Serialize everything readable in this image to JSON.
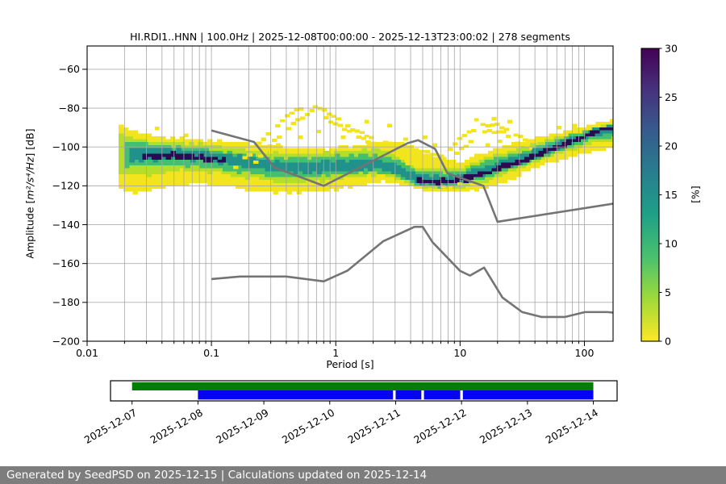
{
  "title": "HI.RDI1..HNN | 100.0Hz | 2025-12-08T00:00:00 - 2025-12-13T23:00:02 | 278 segments",
  "footer": {
    "text": "Generated by SeedPSD on 2025-12-15 | Calculations updated on 2025-12-14",
    "bg": "#7d7d7d",
    "fg": "#ffffff"
  },
  "chart_data": {
    "type": "heatmap",
    "title": "HI.RDI1..HNN | 100.0Hz | 2025-12-08T00:00:00 - 2025-12-13T23:00:02 | 278 segments",
    "xlabel": "Period [s]",
    "ylabel": {
      "prefix": "Amplitude [",
      "math": "m²/s⁴/Hz",
      "suffix": "] [dB]"
    },
    "xscale": "log",
    "xlim": [
      0.01,
      170
    ],
    "ylim": [
      -200,
      -48
    ],
    "xticks": [
      {
        "v": 0.01,
        "label": "0.01"
      },
      {
        "v": 0.1,
        "label": "0.1"
      },
      {
        "v": 1,
        "label": "1"
      },
      {
        "v": 10,
        "label": "10"
      },
      {
        "v": 100,
        "label": "100"
      }
    ],
    "yticks": [
      -200,
      -180,
      -160,
      -140,
      -120,
      -100,
      -80,
      -60
    ],
    "grid": {
      "color": "#a6a6a6",
      "opacity": 0.9
    },
    "colorbar": {
      "label": "[%]",
      "min": 0,
      "max": 30,
      "ticks": [
        0,
        5,
        10,
        15,
        20,
        25,
        30
      ],
      "gradient_top_to_bottom": [
        "#440154",
        "#46327e",
        "#365c8d",
        "#277f8e",
        "#1fa187",
        "#4ac16d",
        "#a0da39",
        "#fde725"
      ]
    },
    "noise_models": {
      "color": "#747474",
      "nhnm": [
        [
          0.1,
          -91.5
        ],
        [
          0.22,
          -97.4
        ],
        [
          0.32,
          -110.5
        ],
        [
          0.8,
          -120.0
        ],
        [
          3.8,
          -98.0
        ],
        [
          4.6,
          -96.5
        ],
        [
          6.3,
          -101.0
        ],
        [
          7.9,
          -113.5
        ],
        [
          15.4,
          -120.0
        ],
        [
          20.0,
          -138.5
        ],
        [
          170.0,
          -129.2
        ]
      ],
      "nlnm": [
        [
          0.1,
          -168.0
        ],
        [
          0.17,
          -166.7
        ],
        [
          0.4,
          -166.7
        ],
        [
          0.8,
          -169.2
        ],
        [
          1.24,
          -163.7
        ],
        [
          2.4,
          -148.6
        ],
        [
          4.3,
          -141.1
        ],
        [
          5.0,
          -141.1
        ],
        [
          6.0,
          -149.0
        ],
        [
          10.0,
          -163.8
        ],
        [
          12.0,
          -166.2
        ],
        [
          15.6,
          -162.1
        ],
        [
          21.9,
          -177.5
        ],
        [
          31.6,
          -185.0
        ],
        [
          45.0,
          -187.5
        ],
        [
          70.0,
          -187.5
        ],
        [
          101.0,
          -185.0
        ],
        [
          154.0,
          -185.0
        ],
        [
          170.0,
          -185.3
        ]
      ]
    },
    "cloud": {
      "bands": [
        {
          "name": "prob-1pct",
          "color": "#f2e51e",
          "pts": [
            [
              0.018,
              -121,
              -89
            ],
            [
              0.025,
              -124,
              -92
            ],
            [
              0.04,
              -121,
              -95
            ],
            [
              0.08,
              -118.5,
              -96
            ],
            [
              0.12,
              -120,
              -97
            ],
            [
              0.2,
              -122.5,
              -98
            ],
            [
              0.4,
              -124,
              -100
            ],
            [
              0.8,
              -123,
              -101
            ],
            [
              1.5,
              -120,
              -99
            ],
            [
              2.5,
              -117.5,
              -97
            ],
            [
              4,
              -120,
              -99
            ],
            [
              6,
              -123.5,
              -104
            ],
            [
              10,
              -122.5,
              -108
            ],
            [
              15,
              -122,
              -103
            ],
            [
              25,
              -117,
              -99
            ],
            [
              40,
              -111,
              -96
            ],
            [
              70,
              -106,
              -92
            ],
            [
              120,
              -102,
              -88
            ],
            [
              170,
              -101,
              -86
            ]
          ]
        },
        {
          "name": "prob-3pct",
          "color": "#b5de2b",
          "pts": [
            [
              0.018,
              -113,
              -93
            ],
            [
              0.03,
              -115,
              -97
            ],
            [
              0.06,
              -112,
              -98
            ],
            [
              0.1,
              -113,
              -99
            ],
            [
              0.2,
              -116,
              -101.5
            ],
            [
              0.4,
              -118.5,
              -103.5
            ],
            [
              0.8,
              -117.5,
              -103
            ],
            [
              1.5,
              -115.5,
              -101.5
            ],
            [
              2.5,
              -114,
              -101
            ],
            [
              4,
              -119,
              -110
            ],
            [
              6,
              -121.5,
              -111
            ],
            [
              10,
              -121.5,
              -111.5
            ],
            [
              15,
              -118,
              -106.5
            ],
            [
              25,
              -113.5,
              -102
            ],
            [
              40,
              -108.5,
              -98
            ],
            [
              70,
              -102.5,
              -94
            ],
            [
              120,
              -98,
              -90
            ],
            [
              170,
              -97.5,
              -87.5
            ]
          ]
        },
        {
          "name": "prob-7pct",
          "color": "#44bf70",
          "pts": [
            [
              0.02,
              -110,
              -97
            ],
            [
              0.04,
              -109.5,
              -99
            ],
            [
              0.08,
              -110,
              -100.5
            ],
            [
              0.15,
              -112.5,
              -103
            ],
            [
              0.3,
              -115,
              -105.5
            ],
            [
              0.6,
              -115.5,
              -105.5
            ],
            [
              1,
              -114.5,
              -104.5
            ],
            [
              2,
              -113,
              -104
            ],
            [
              3,
              -114.5,
              -106
            ],
            [
              4.5,
              -120,
              -112.5
            ],
            [
              7,
              -120.5,
              -113
            ],
            [
              10,
              -120,
              -113
            ],
            [
              15,
              -116.5,
              -108
            ],
            [
              25,
              -112,
              -104.5
            ],
            [
              40,
              -107,
              -100
            ],
            [
              70,
              -101,
              -95
            ],
            [
              120,
              -96.5,
              -90.5
            ],
            [
              170,
              -95,
              -88.5
            ]
          ]
        },
        {
          "name": "prob-14pct",
          "color": "#21918c",
          "pts": [
            [
              0.022,
              -107.5,
              -100
            ],
            [
              0.05,
              -106.5,
              -101
            ],
            [
              0.09,
              -107.5,
              -102.5
            ],
            [
              0.15,
              -109.5,
              -104
            ],
            [
              0.3,
              -112.5,
              -107
            ],
            [
              0.6,
              -113.5,
              -108
            ],
            [
              1,
              -112.5,
              -107
            ],
            [
              2,
              -111.5,
              -106.5
            ],
            [
              3,
              -113,
              -108.5
            ],
            [
              4.5,
              -119,
              -114.5
            ],
            [
              7,
              -119.5,
              -115
            ],
            [
              10,
              -118.5,
              -114.5
            ],
            [
              15,
              -114.5,
              -110
            ],
            [
              25,
              -110.5,
              -106
            ],
            [
              40,
              -105.5,
              -101.5
            ],
            [
              70,
              -99.5,
              -96
            ],
            [
              120,
              -94.5,
              -91
            ],
            [
              170,
              -92.5,
              -89
            ]
          ]
        },
        {
          "name": "prob-28pct-ridge-short-period",
          "color": "#2a0a50",
          "pts": [
            [
              0.028,
              -106,
              -103.2
            ],
            [
              0.05,
              -105.8,
              -103.2
            ],
            [
              0.08,
              -106.8,
              -104.2
            ],
            [
              0.13,
              -108.3,
              -106
            ]
          ]
        },
        {
          "name": "prob-28pct-ridge-long-period",
          "color": "#2a0a50",
          "pts": [
            [
              4.5,
              -118.3,
              -116.2
            ],
            [
              7,
              -118.8,
              -116.6
            ],
            [
              10,
              -118.2,
              -116
            ],
            [
              13,
              -116.5,
              -114.2
            ],
            [
              18,
              -113.5,
              -111.2
            ],
            [
              25,
              -110.3,
              -108.2
            ],
            [
              40,
              -105.3,
              -103.2
            ],
            [
              70,
              -99.3,
              -97.2
            ],
            [
              120,
              -93.8,
              -91.8
            ],
            [
              170,
              -91,
              -88.8
            ]
          ]
        }
      ],
      "arcs": [
        {
          "name": "event-arc-1a",
          "color": "#f2e51e",
          "half_db": 0.8,
          "pts": [
            [
              0.15,
              -111
            ],
            [
              0.2,
              -104
            ],
            [
              0.3,
              -92
            ],
            [
              0.45,
              -82
            ],
            [
              0.62,
              -77.5
            ],
            [
              0.9,
              -83
            ],
            [
              1.3,
              -90
            ],
            [
              2,
              -95.5
            ],
            [
              3,
              -99.5
            ],
            [
              4.5,
              -101.5
            ],
            [
              6.5,
              -104
            ],
            [
              9,
              -108
            ]
          ]
        },
        {
          "name": "event-arc-1b",
          "color": "#f2e51e",
          "half_db": 0.8,
          "pts": [
            [
              0.2,
              -112
            ],
            [
              0.3,
              -99
            ],
            [
              0.45,
              -88
            ],
            [
              0.65,
              -81.5
            ],
            [
              0.95,
              -87.5
            ],
            [
              1.5,
              -94.5
            ],
            [
              2.3,
              -100
            ],
            [
              3.5,
              -104
            ],
            [
              5,
              -107
            ],
            [
              7,
              -110
            ]
          ]
        },
        {
          "name": "event-arc-2a",
          "color": "#f2e51e",
          "half_db": 0.8,
          "pts": [
            [
              8,
              -102
            ],
            [
              11,
              -93.5
            ],
            [
              15,
              -88.7
            ],
            [
              20,
              -88.7
            ],
            [
              27,
              -93
            ],
            [
              35,
              -96.5
            ],
            [
              42,
              -98
            ]
          ]
        },
        {
          "name": "event-arc-2b",
          "color": "#f2e51e",
          "half_db": 0.8,
          "pts": [
            [
              9,
              -104
            ],
            [
              12,
              -97.5
            ],
            [
              16,
              -92
            ],
            [
              22,
              -92.5
            ],
            [
              30,
              -98
            ],
            [
              38,
              -100.5
            ]
          ]
        }
      ],
      "specks": [
        [
          0.25,
          -96
        ],
        [
          0.33,
          -99
        ],
        [
          0.5,
          -95
        ],
        [
          0.7,
          -92
        ],
        [
          1.1,
          -95
        ],
        [
          0.22,
          -120
        ],
        [
          0.5,
          -121
        ],
        [
          1.7,
          -87
        ],
        [
          2.6,
          -89
        ],
        [
          5,
          -95
        ],
        [
          5.5,
          -122
        ],
        [
          8,
          -121
        ],
        [
          12,
          -121
        ],
        [
          3.5,
          -96
        ],
        [
          16,
          -99
        ],
        [
          20,
          -97
        ],
        [
          13,
          -86
        ],
        [
          18,
          -85.5
        ],
        [
          24,
          -87
        ],
        [
          6,
          -99
        ],
        [
          60,
          -90
        ],
        [
          80,
          -89
        ],
        [
          0.06,
          -94
        ],
        [
          0.035,
          -90.5
        ],
        [
          7,
          -120.5
        ],
        [
          9.5,
          -119
        ]
      ]
    },
    "timeline": {
      "dates": [
        "2025-12-07",
        "2025-12-08",
        "2025-12-09",
        "2025-12-10",
        "2025-12-11",
        "2025-12-12",
        "2025-12-13",
        "2025-12-14"
      ],
      "green_bar_days": [
        0,
        7
      ],
      "blue_bar_days": [
        1,
        7
      ],
      "blue_gaps_days": [
        [
          3.96,
          4.0
        ],
        [
          4.39,
          4.43
        ],
        [
          4.98,
          5.02
        ]
      ],
      "green_color": "#007e00",
      "blue_color": "#0404f0"
    }
  }
}
